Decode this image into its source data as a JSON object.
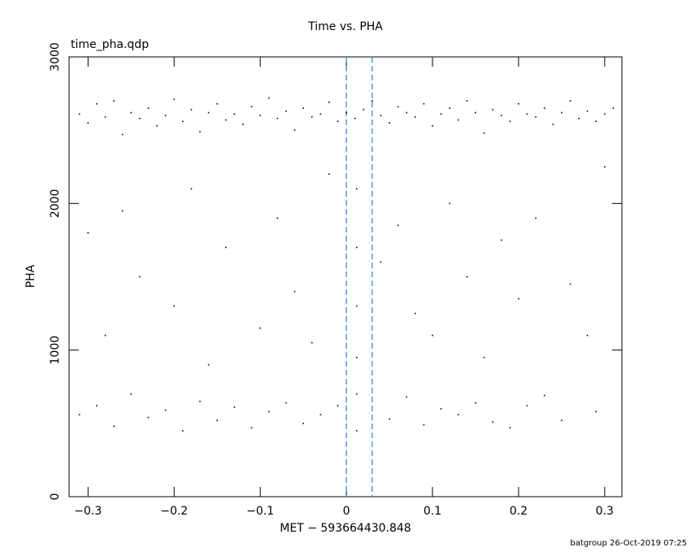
{
  "chart_data": {
    "type": "scatter",
    "title": "Time vs. PHA",
    "subtitle": "time_pha.qdp",
    "xlabel": "MET − 593664430.848",
    "ylabel": "PHA",
    "footer": "batgroup 26-Oct-2019 07:25",
    "xlim": [
      -0.322,
      0.32
    ],
    "ylim": [
      0,
      3000
    ],
    "xticks": [
      {
        "value": -0.3,
        "label": "−0.3"
      },
      {
        "value": -0.2,
        "label": "−0.2"
      },
      {
        "value": -0.1,
        "label": "−0.1"
      },
      0,
      0.1,
      0.2,
      0.3
    ],
    "yticks": [
      0,
      1000,
      2000,
      3000
    ],
    "vlines": [
      0,
      0.03
    ],
    "vline_color": "#3a8ad0",
    "series": [
      {
        "color": "#000000",
        "x": [
          -0.31,
          -0.3,
          -0.29,
          -0.28,
          -0.27,
          -0.26,
          -0.25,
          -0.24,
          -0.23,
          -0.22,
          -0.21,
          -0.2,
          -0.19,
          -0.18,
          -0.17,
          -0.16,
          -0.15,
          -0.14,
          -0.13,
          -0.12,
          -0.11,
          -0.1,
          -0.09,
          -0.08,
          -0.07,
          -0.06,
          -0.05,
          -0.04,
          -0.03,
          -0.02,
          -0.01,
          0.0,
          0.01,
          0.02,
          0.03,
          0.04,
          0.05,
          0.06,
          0.07,
          0.08,
          0.09,
          0.1,
          0.11,
          0.12,
          0.13,
          0.14,
          0.15,
          0.16,
          0.17,
          0.18,
          0.19,
          0.2,
          0.21,
          0.22,
          0.23,
          0.24,
          0.25,
          0.26,
          0.27,
          0.28,
          0.29,
          0.3,
          0.31,
          -0.31,
          -0.29,
          -0.27,
          -0.25,
          -0.23,
          -0.21,
          -0.19,
          -0.17,
          -0.15,
          -0.13,
          -0.11,
          -0.09,
          -0.07,
          -0.05,
          -0.03,
          -0.01,
          0.012,
          0.012,
          0.05,
          0.07,
          0.09,
          0.11,
          0.13,
          0.15,
          0.17,
          0.19,
          0.21,
          0.23,
          0.25,
          0.29,
          -0.3,
          -0.28,
          -0.26,
          -0.24,
          -0.2,
          -0.18,
          -0.16,
          -0.14,
          -0.1,
          -0.08,
          -0.06,
          -0.04,
          -0.02,
          0.012,
          0.012,
          0.012,
          0.012,
          0.04,
          0.06,
          0.08,
          0.1,
          0.12,
          0.14,
          0.16,
          0.18,
          0.2,
          0.22,
          0.26,
          0.28,
          0.3
        ],
        "y": [
          2610,
          2550,
          2680,
          2590,
          2700,
          2470,
          2620,
          2580,
          2650,
          2530,
          2600,
          2710,
          2560,
          2640,
          2490,
          2620,
          2680,
          2570,
          2610,
          2540,
          2660,
          2600,
          2720,
          2580,
          2630,
          2500,
          2650,
          2590,
          2610,
          2690,
          2560,
          2620,
          2580,
          2640,
          2700,
          2600,
          2550,
          2660,
          2620,
          2590,
          2680,
          2530,
          2610,
          2650,
          2570,
          2700,
          2620,
          2480,
          2640,
          2600,
          2560,
          2680,
          2610,
          2590,
          2650,
          2540,
          2620,
          2700,
          2580,
          2630,
          2560,
          2610,
          2650,
          560,
          620,
          480,
          700,
          540,
          590,
          450,
          650,
          520,
          610,
          470,
          580,
          640,
          500,
          560,
          620,
          700,
          450,
          530,
          680,
          490,
          600,
          560,
          640,
          510,
          470,
          620,
          690,
          520,
          580,
          1800,
          1100,
          1950,
          1500,
          1300,
          2100,
          900,
          1700,
          1150,
          1900,
          1400,
          1050,
          2200,
          2100,
          1700,
          1300,
          950,
          1600,
          1850,
          1250,
          1100,
          2000,
          1500,
          950,
          1750,
          1350,
          1900,
          1450,
          1100,
          2250
        ]
      }
    ]
  }
}
